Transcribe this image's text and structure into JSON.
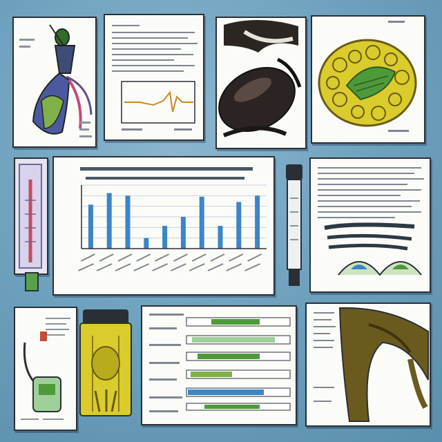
{
  "chart_data": {
    "type": "bar",
    "title": "",
    "xlabel": "",
    "ylabel": "",
    "categories": [
      "",
      "",
      "",
      "",
      "",
      "",
      "",
      "",
      "",
      ""
    ],
    "values": [
      8.3,
      10.5,
      10.0,
      2.0,
      4.3,
      6.0,
      9.8,
      4.3,
      8.8,
      10.0
    ],
    "ylim": [
      0,
      12
    ],
    "grid": true,
    "bar_color": "#3a86c8"
  },
  "colors": {
    "background": "#6b9fbc",
    "panel": "#fbfbf8",
    "outline": "#2a2f35",
    "yellow": "#d9cc2c",
    "green": "#4e9a3a",
    "blue_accent": "#3a86c8"
  }
}
